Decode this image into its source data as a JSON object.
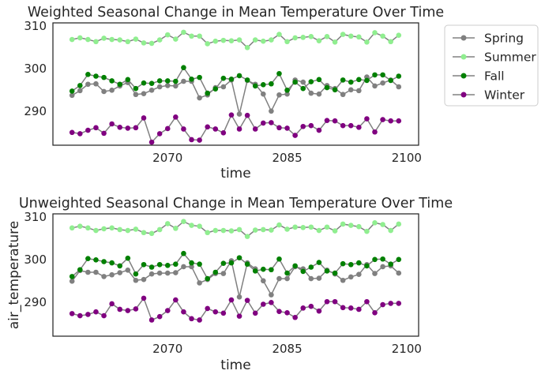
{
  "chart_data": [
    {
      "type": "line",
      "title": "Weighted Seasonal Change in Mean Temperature Over Time",
      "xlabel": "time",
      "ylabel": "",
      "xlim": [
        2055.6,
        2101.5
      ],
      "ylim": [
        282,
        310.7
      ],
      "xticks": [
        2070,
        2085,
        2100
      ],
      "yticks": [
        290,
        300,
        310
      ],
      "grid": false,
      "legend": "outside-right",
      "x": [
        2058,
        2059,
        2060,
        2061,
        2062,
        2063,
        2064,
        2065,
        2066,
        2067,
        2068,
        2069,
        2070,
        2071,
        2072,
        2073,
        2074,
        2075,
        2076,
        2077,
        2078,
        2079,
        2080,
        2081,
        2082,
        2083,
        2084,
        2085,
        2086,
        2087,
        2088,
        2089,
        2090,
        2091,
        2092,
        2093,
        2094,
        2095,
        2096,
        2097,
        2098,
        2099
      ],
      "series": [
        {
          "name": "Spring",
          "color": "#808080",
          "values": [
            293.7,
            294.8,
            296.3,
            296.4,
            294.6,
            294.9,
            295.9,
            296.7,
            293.9,
            294.1,
            294.9,
            295.7,
            296.0,
            295.9,
            297.0,
            297.0,
            293.1,
            293.8,
            295.5,
            295.7,
            297.3,
            289.3,
            297.2,
            296.3,
            294.0,
            290.0,
            293.8,
            294.0,
            297.3,
            296.8,
            294.2,
            294.0,
            296.0,
            295.3,
            293.9,
            295.0,
            294.8,
            298.0,
            295.9,
            296.6,
            297.3,
            295.7
          ]
        },
        {
          "name": "Summer",
          "color": "#90ee90",
          "values": [
            306.8,
            307.2,
            306.8,
            306.3,
            307.1,
            306.8,
            306.7,
            306.3,
            306.9,
            306.0,
            305.9,
            306.7,
            307.9,
            306.9,
            308.5,
            307.6,
            307.6,
            305.8,
            306.4,
            306.6,
            306.5,
            306.7,
            304.9,
            306.7,
            306.4,
            306.7,
            308.0,
            306.3,
            307.2,
            307.3,
            307.5,
            306.5,
            307.5,
            306.2,
            308.0,
            307.6,
            307.4,
            306.2,
            308.4,
            307.6,
            306.3,
            307.8
          ]
        },
        {
          "name": "Fall",
          "color": "#008000",
          "values": [
            294.7,
            296.0,
            298.6,
            298.2,
            297.9,
            297.1,
            296.3,
            297.4,
            295.3,
            296.6,
            296.5,
            297.1,
            297.1,
            297.0,
            300.2,
            297.5,
            297.9,
            294.2,
            295.2,
            297.7,
            297.5,
            298.3,
            297.3,
            295.9,
            296.2,
            296.4,
            298.8,
            294.9,
            296.8,
            295.3,
            296.9,
            297.4,
            295.5,
            295.0,
            297.3,
            296.8,
            297.4,
            297.2,
            298.5,
            298.5,
            297.2,
            298.2
          ]
        },
        {
          "name": "Winter",
          "color": "#800080",
          "values": [
            285.0,
            284.7,
            285.5,
            286.1,
            284.8,
            287.0,
            286.2,
            286.0,
            286.1,
            288.4,
            282.7,
            284.7,
            285.9,
            288.6,
            285.8,
            283.3,
            283.2,
            286.3,
            285.8,
            284.9,
            289.1,
            285.8,
            289.0,
            285.8,
            287.2,
            287.3,
            286.1,
            286.0,
            284.3,
            286.4,
            286.6,
            285.5,
            287.8,
            287.7,
            286.6,
            286.6,
            286.2,
            288.2,
            285.1,
            288.0,
            287.7,
            287.7
          ]
        }
      ]
    },
    {
      "type": "line",
      "title": "Unweighted Seasonal Change in Mean Temperature Over Time",
      "xlabel": "time",
      "ylabel": "air_temperature",
      "xlim": [
        2055.6,
        2101.5
      ],
      "ylim": [
        282,
        310.7
      ],
      "xticks": [
        2070,
        2085,
        2100
      ],
      "yticks": [
        290,
        300,
        310
      ],
      "grid": false,
      "legend": "none",
      "x": [
        2058,
        2059,
        2060,
        2061,
        2062,
        2063,
        2064,
        2065,
        2066,
        2067,
        2068,
        2069,
        2070,
        2071,
        2072,
        2073,
        2074,
        2075,
        2076,
        2077,
        2078,
        2079,
        2080,
        2081,
        2082,
        2083,
        2084,
        2085,
        2086,
        2087,
        2088,
        2089,
        2090,
        2091,
        2092,
        2093,
        2094,
        2095,
        2096,
        2097,
        2098,
        2099
      ],
      "series": [
        {
          "name": "Spring",
          "color": "#808080",
          "values": [
            294.9,
            297.4,
            297.0,
            297.0,
            296.0,
            296.4,
            296.9,
            297.5,
            295.1,
            295.3,
            296.6,
            296.8,
            296.8,
            296.9,
            298.3,
            298.3,
            294.5,
            295.3,
            296.7,
            296.7,
            299.7,
            291.2,
            299.2,
            297.8,
            295.0,
            291.7,
            295.5,
            295.5,
            298.3,
            297.8,
            295.5,
            295.6,
            297.5,
            296.6,
            295.1,
            295.9,
            296.5,
            298.8,
            296.7,
            298.3,
            298.5,
            296.8
          ]
        },
        {
          "name": "Summer",
          "color": "#90ee90",
          "values": [
            307.4,
            307.8,
            307.4,
            306.8,
            307.2,
            307.4,
            307.0,
            306.8,
            307.1,
            306.3,
            306.1,
            307.0,
            308.4,
            307.3,
            308.9,
            308.0,
            307.8,
            306.3,
            306.8,
            306.8,
            306.7,
            307.0,
            305.4,
            306.9,
            307.0,
            306.9,
            308.1,
            307.1,
            307.6,
            307.5,
            307.6,
            306.8,
            307.6,
            306.7,
            308.3,
            308.0,
            307.7,
            306.6,
            308.6,
            308.2,
            306.8,
            308.3
          ]
        },
        {
          "name": "Fall",
          "color": "#008000",
          "values": [
            296.0,
            297.6,
            300.2,
            299.9,
            299.5,
            299.2,
            298.5,
            300.3,
            296.6,
            298.8,
            298.2,
            298.8,
            298.6,
            298.9,
            301.4,
            299.2,
            298.9,
            295.5,
            297.0,
            299.1,
            299.2,
            300.4,
            298.9,
            297.3,
            297.7,
            297.6,
            300.1,
            296.8,
            298.5,
            297.2,
            298.2,
            299.3,
            297.3,
            296.8,
            299.0,
            298.8,
            299.2,
            298.5,
            300.0,
            300.1,
            298.9,
            300.0
          ]
        },
        {
          "name": "Winter",
          "color": "#800080",
          "values": [
            287.3,
            286.8,
            287.1,
            287.7,
            286.8,
            289.6,
            288.3,
            288.0,
            288.4,
            290.9,
            285.8,
            286.6,
            288.0,
            290.5,
            287.7,
            286.1,
            285.8,
            288.5,
            287.7,
            287.4,
            290.5,
            286.7,
            290.4,
            287.4,
            289.5,
            289.9,
            287.8,
            287.5,
            286.4,
            288.6,
            289.0,
            287.9,
            290.1,
            290.1,
            288.7,
            288.6,
            288.3,
            290.1,
            287.5,
            289.4,
            289.7,
            289.7
          ]
        }
      ]
    }
  ]
}
